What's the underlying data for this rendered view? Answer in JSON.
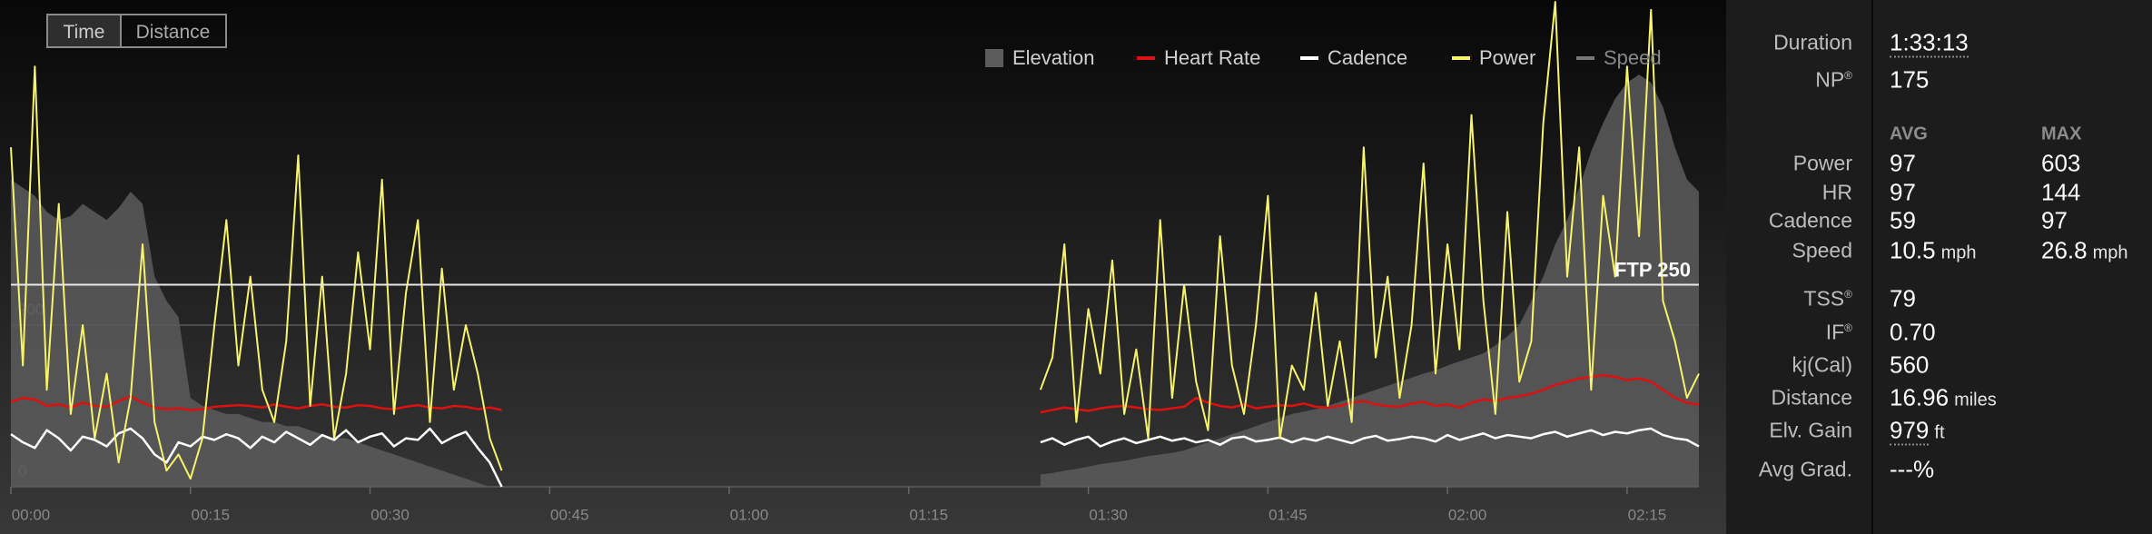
{
  "chart_data": {
    "type": "line",
    "x": [
      0,
      1,
      2,
      3,
      4,
      5,
      6,
      7,
      8,
      9,
      10,
      11,
      12,
      13,
      14,
      15,
      16,
      17,
      18,
      19,
      20,
      21,
      22,
      23,
      24,
      25,
      26,
      27,
      28,
      29,
      30,
      31,
      32,
      33,
      34,
      35,
      36,
      37,
      38,
      39,
      40,
      41,
      42,
      43,
      44,
      45,
      46,
      47,
      48,
      49,
      50,
      51,
      52,
      53,
      54,
      55,
      56,
      57,
      58,
      59,
      60,
      61,
      62,
      63,
      64,
      65,
      66,
      67,
      68,
      69,
      70,
      71,
      72,
      73,
      74,
      75,
      76,
      77,
      78,
      79,
      80,
      81,
      82,
      83,
      84,
      85,
      86,
      87,
      88,
      89,
      90,
      91,
      92,
      93,
      94,
      95,
      96,
      97,
      98,
      99,
      100,
      101,
      102,
      103,
      104,
      105,
      106,
      107,
      108,
      109,
      110,
      111,
      112,
      113,
      114,
      115,
      116,
      117,
      118,
      119,
      120,
      121,
      122,
      123,
      124,
      125,
      126,
      127,
      128,
      129,
      130,
      131,
      132,
      133,
      134,
      135,
      136,
      137,
      138,
      139,
      140,
      141
    ],
    "xlim": [
      0,
      141
    ],
    "xticks": [
      {
        "value": 0,
        "label": "00:00"
      },
      {
        "value": 15,
        "label": "00:15"
      },
      {
        "value": 30,
        "label": "00:30"
      },
      {
        "value": 45,
        "label": "00:45"
      },
      {
        "value": 60,
        "label": "01:00"
      },
      {
        "value": 75,
        "label": "01:15"
      },
      {
        "value": 90,
        "label": "01:30"
      },
      {
        "value": 105,
        "label": "01:45"
      },
      {
        "value": 120,
        "label": "02:00"
      },
      {
        "value": 135,
        "label": "02:15"
      }
    ],
    "ylim": [
      0,
      600
    ],
    "yticks": [
      0,
      200
    ],
    "ftp": {
      "value": 250,
      "label": "FTP 250"
    },
    "series": [
      {
        "name": "Elevation",
        "color": "#5c5c5c",
        "style": "area",
        "values": [
          380,
          370,
          360,
          340,
          330,
          335,
          350,
          340,
          330,
          345,
          365,
          350,
          260,
          230,
          210,
          110,
          100,
          95,
          90,
          90,
          85,
          80,
          80,
          75,
          75,
          70,
          65,
          60,
          60,
          55,
          50,
          45,
          40,
          35,
          30,
          25,
          20,
          15,
          10,
          5,
          0,
          0,
          null,
          null,
          null,
          null,
          null,
          null,
          null,
          null,
          null,
          null,
          null,
          null,
          null,
          null,
          null,
          null,
          null,
          null,
          null,
          null,
          null,
          null,
          null,
          null,
          null,
          null,
          null,
          null,
          null,
          null,
          null,
          null,
          null,
          null,
          null,
          null,
          null,
          null,
          null,
          null,
          null,
          null,
          null,
          null,
          15,
          17,
          20,
          22,
          25,
          28,
          30,
          32,
          35,
          38,
          40,
          42,
          45,
          50,
          55,
          60,
          65,
          70,
          75,
          80,
          85,
          90,
          93,
          96,
          100,
          105,
          110,
          115,
          120,
          125,
          130,
          135,
          140,
          144,
          150,
          155,
          160,
          165,
          175,
          186,
          200,
          230,
          260,
          300,
          330,
          370,
          415,
          450,
          480,
          500,
          510,
          500,
          470,
          420,
          380,
          365
        ]
      },
      {
        "name": "Heart Rate",
        "color": "#e01010",
        "style": "line",
        "values": [
          105,
          110,
          108,
          100,
          102,
          98,
          104,
          100,
          99,
          106,
          112,
          104,
          98,
          96,
          97,
          95,
          96,
          99,
          100,
          101,
          100,
          98,
          102,
          99,
          97,
          100,
          102,
          99,
          98,
          101,
          100,
          97,
          96,
          99,
          101,
          98,
          97,
          100,
          99,
          96,
          98,
          95,
          null,
          null,
          null,
          null,
          null,
          null,
          null,
          null,
          null,
          null,
          null,
          null,
          null,
          null,
          null,
          null,
          null,
          null,
          null,
          null,
          null,
          null,
          null,
          null,
          null,
          null,
          null,
          null,
          null,
          null,
          null,
          null,
          null,
          null,
          null,
          null,
          null,
          null,
          null,
          null,
          null,
          null,
          null,
          null,
          92,
          95,
          98,
          96,
          94,
          97,
          99,
          100,
          98,
          96,
          95,
          97,
          99,
          110,
          104,
          100,
          98,
          102,
          97,
          99,
          101,
          100,
          103,
          99,
          98,
          100,
          104,
          106,
          102,
          100,
          99,
          103,
          105,
          100,
          102,
          98,
          104,
          108,
          106,
          110,
          112,
          115,
          120,
          126,
          130,
          134,
          136,
          138,
          136,
          132,
          134,
          130,
          120,
          110,
          104,
          102
        ]
      },
      {
        "name": "Cadence",
        "color": "#ffffff",
        "style": "line",
        "values": [
          65,
          55,
          48,
          70,
          60,
          45,
          62,
          58,
          50,
          66,
          72,
          60,
          40,
          30,
          55,
          50,
          62,
          58,
          65,
          60,
          48,
          62,
          55,
          68,
          60,
          52,
          64,
          58,
          70,
          55,
          62,
          66,
          50,
          60,
          58,
          72,
          54,
          62,
          68,
          48,
          30,
          0,
          null,
          null,
          null,
          null,
          null,
          null,
          null,
          null,
          null,
          null,
          null,
          null,
          null,
          null,
          null,
          null,
          null,
          null,
          null,
          null,
          null,
          null,
          null,
          null,
          null,
          null,
          null,
          null,
          null,
          null,
          null,
          null,
          null,
          null,
          null,
          null,
          null,
          null,
          null,
          null,
          null,
          null,
          null,
          null,
          55,
          60,
          52,
          58,
          62,
          50,
          56,
          60,
          54,
          58,
          62,
          57,
          60,
          55,
          58,
          52,
          60,
          62,
          56,
          58,
          61,
          55,
          60,
          57,
          62,
          58,
          54,
          60,
          63,
          57,
          59,
          62,
          60,
          56,
          64,
          58,
          62,
          66,
          60,
          64,
          62,
          60,
          65,
          68,
          62,
          66,
          70,
          64,
          68,
          66,
          70,
          72,
          64,
          60,
          58,
          50
        ]
      },
      {
        "name": "Power",
        "color": "#f7f36b",
        "style": "line",
        "values": [
          420,
          150,
          520,
          120,
          350,
          90,
          200,
          60,
          140,
          30,
          110,
          300,
          80,
          20,
          40,
          10,
          60,
          200,
          330,
          150,
          260,
          120,
          80,
          180,
          410,
          100,
          260,
          60,
          140,
          290,
          170,
          380,
          90,
          240,
          330,
          80,
          270,
          120,
          200,
          140,
          60,
          20,
          null,
          null,
          null,
          null,
          null,
          null,
          null,
          null,
          null,
          null,
          null,
          null,
          null,
          null,
          null,
          null,
          null,
          null,
          null,
          null,
          null,
          null,
          null,
          null,
          null,
          null,
          null,
          null,
          null,
          null,
          null,
          null,
          null,
          null,
          null,
          null,
          null,
          null,
          null,
          null,
          null,
          null,
          null,
          null,
          120,
          160,
          300,
          80,
          220,
          140,
          280,
          90,
          170,
          60,
          330,
          110,
          250,
          130,
          70,
          310,
          150,
          90,
          200,
          360,
          60,
          150,
          120,
          240,
          100,
          180,
          80,
          420,
          160,
          260,
          110,
          200,
          400,
          140,
          300,
          170,
          460,
          230,
          90,
          340,
          130,
          180,
          450,
          600,
          260,
          420,
          120,
          360,
          260,
          520,
          310,
          590,
          230,
          180,
          110,
          140
        ]
      },
      {
        "name": "Speed",
        "color": "#777777",
        "style": "line",
        "hidden": true
      }
    ]
  },
  "controls": {
    "options": [
      "Time",
      "Distance"
    ],
    "selected": 0
  },
  "summary": {
    "top": [
      {
        "label": "Duration",
        "value": "1:33:13",
        "dotted": true
      },
      {
        "label": "NP",
        "sup": "®",
        "value": "175"
      }
    ],
    "columns": [
      "AVG",
      "MAX"
    ],
    "metrics": [
      {
        "label": "Power",
        "avg": "97",
        "max": "603"
      },
      {
        "label": "HR",
        "avg": "97",
        "max": "144"
      },
      {
        "label": "Cadence",
        "avg": "59",
        "max": "97"
      },
      {
        "label": "Speed",
        "avg": "10.5",
        "avg_unit": "mph",
        "max": "26.8",
        "max_unit": "mph"
      }
    ],
    "totals": [
      {
        "label": "TSS",
        "sup": "®",
        "value": "79"
      },
      {
        "label": "IF",
        "sup": "®",
        "value": "0.70"
      },
      {
        "label": "kj(Cal)",
        "value": "560"
      },
      {
        "label": "Distance",
        "value": "16.96",
        "unit": "miles"
      },
      {
        "label": "Elv. Gain",
        "value": "979",
        "unit": "ft",
        "dotted": true
      },
      {
        "label": "Avg Grad.",
        "value": "---%"
      }
    ]
  }
}
